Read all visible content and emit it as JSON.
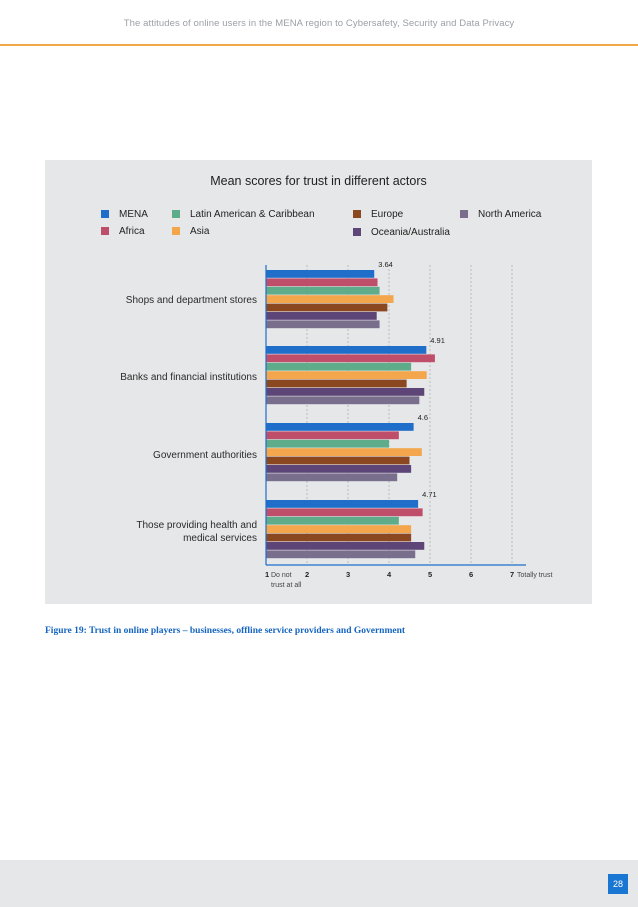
{
  "header": {
    "title": "The attitudes of online users in the MENA region to Cybersafety, Security and Data Privacy"
  },
  "caption": "Figure 19: Trust in online players – businesses, offline service providers and Government",
  "footer": {
    "page_number": "28"
  },
  "chart_data": {
    "type": "bar",
    "orientation": "horizontal",
    "title": "Mean scores for trust in different actors",
    "categories": [
      "Shops and department stores",
      "Banks and financial institutions",
      "Government authorities",
      "Those providing health and medical services"
    ],
    "xlim": [
      1,
      7
    ],
    "ticks": [
      "1",
      "2",
      "3",
      "4",
      "5",
      "6",
      "7"
    ],
    "tick_low_note": "Do not trust at all",
    "tick_high_note": "Totally trust",
    "data_labels": [
      "3.64",
      "4.91",
      "4.6",
      "4.71"
    ],
    "series": [
      {
        "name": "MENA",
        "color": "#1f6ec9",
        "values": [
          3.64,
          4.91,
          4.6,
          4.71
        ]
      },
      {
        "name": "Africa",
        "color": "#bf4e6b",
        "values": [
          3.72,
          5.12,
          4.24,
          4.82
        ]
      },
      {
        "name": "Latin American & Caribbean",
        "color": "#5fac8a",
        "values": [
          3.77,
          4.54,
          4.0,
          4.24
        ]
      },
      {
        "name": "Asia",
        "color": "#f3a64c",
        "values": [
          4.11,
          4.92,
          4.8,
          4.54
        ]
      },
      {
        "name": "Europe",
        "color": "#8b4820",
        "values": [
          3.96,
          4.43,
          4.5,
          4.54
        ]
      },
      {
        "name": "Oceania/Australia",
        "color": "#5d4677",
        "values": [
          3.7,
          4.86,
          4.54,
          4.86
        ]
      },
      {
        "name": "North America",
        "color": "#7a6e8d",
        "values": [
          3.77,
          4.74,
          4.2,
          4.64
        ]
      }
    ]
  }
}
